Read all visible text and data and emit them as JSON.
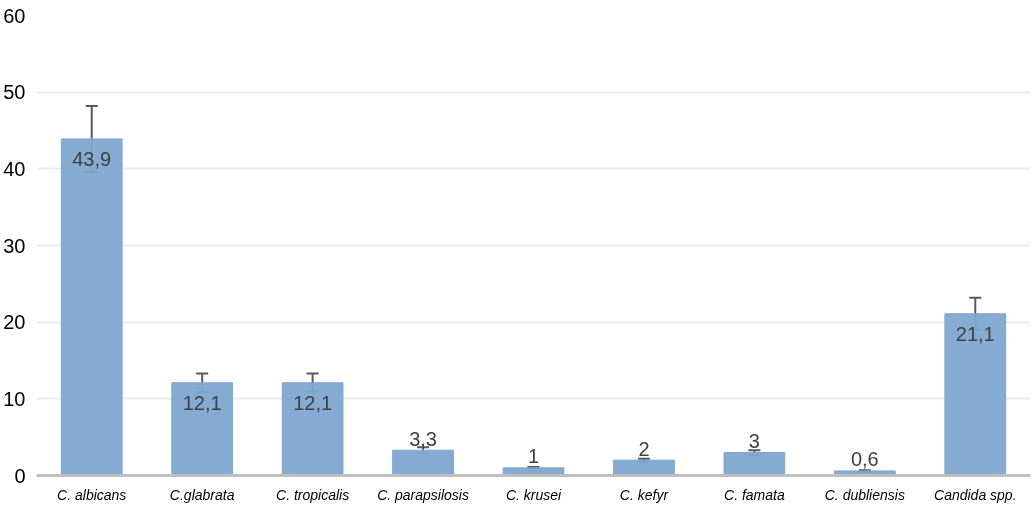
{
  "chart_data": {
    "type": "bar",
    "categories": [
      "C. albicans",
      "C.glabrata",
      "C. tropicalis",
      "C. parapsilosis",
      "C. krusei",
      "C. kefyr",
      "C. famata",
      "C. dubliensis",
      "Candida spp."
    ],
    "values": [
      43.9,
      12.1,
      12.1,
      3.3,
      1,
      2,
      3,
      0.6,
      21.1
    ],
    "value_labels": [
      "43,9",
      "12,1",
      "12,1",
      "3,3",
      "1",
      "2",
      "3",
      "0,6",
      "21,1"
    ],
    "errors": [
      4.3,
      1.2,
      1.2,
      0.4,
      0.1,
      0.2,
      0.3,
      0.1,
      2.1
    ],
    "color": "#7fa6d0",
    "ylim": [
      0,
      60
    ],
    "yticks": [
      0,
      10,
      20,
      30,
      40,
      50,
      60
    ],
    "grid": "y"
  }
}
